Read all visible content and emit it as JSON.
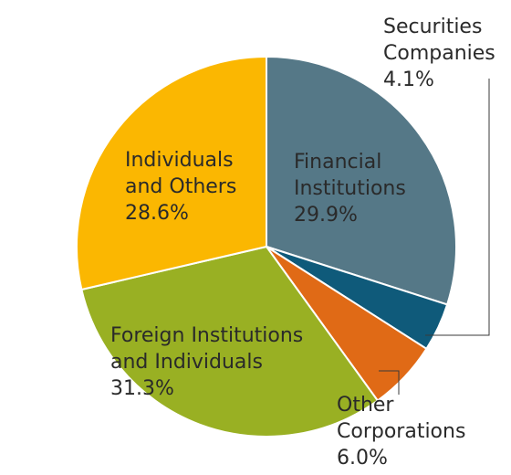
{
  "chart_data": {
    "type": "pie",
    "title": "",
    "legend": "none",
    "slices": [
      {
        "name": "Financial Institutions",
        "value": 29.9,
        "color": "#557887",
        "label_lines": [
          "Financial",
          "Institutions",
          "29.9%"
        ]
      },
      {
        "name": "Securities Companies",
        "value": 4.1,
        "color": "#0f5a7a",
        "label_lines": [
          "Securities",
          "Companies",
          "4.1%"
        ]
      },
      {
        "name": "Other Corporations",
        "value": 6.0,
        "color": "#e06a16",
        "label_lines": [
          "Other",
          "Corporations",
          "6.0%"
        ]
      },
      {
        "name": "Foreign Institutions and Individuals",
        "value": 31.3,
        "color": "#99b023",
        "label_lines": [
          "Foreign Institutions",
          "and Individuals",
          "31.3%"
        ]
      },
      {
        "name": "Individuals and Others",
        "value": 28.6,
        "color": "#fbb701",
        "label_lines": [
          "Individuals",
          "and Others",
          "28.6%"
        ]
      }
    ]
  }
}
